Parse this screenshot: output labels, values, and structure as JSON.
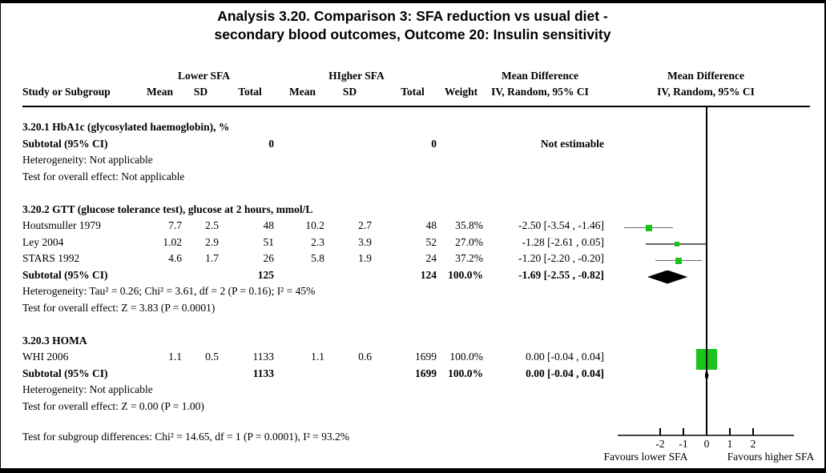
{
  "title": {
    "line1": "Analysis 3.20.   Comparison 3: SFA reduction vs usual diet -",
    "line2": "secondary blood outcomes, Outcome 20: Insulin sensitivity"
  },
  "header": {
    "study": "Study or Subgroup",
    "group1": "Lower SFA",
    "group2": "HIgher SFA",
    "mean1": "Mean",
    "sd1": "SD",
    "total1": "Total",
    "mean2": "Mean",
    "sd2": "SD",
    "total2": "Total",
    "weight": "Weight",
    "effect_title": "Mean Difference",
    "effect_sub": "IV, Random, 95% CI",
    "plot_title": "Mean Difference",
    "plot_sub": "IV, Random, 95% CI"
  },
  "colors": {
    "marker_green": "#1BC41B",
    "diamond_black": "#000000",
    "ci_line_gray": "#666666"
  },
  "chart_data": {
    "type": "forest",
    "effect_measure": "Mean Difference (IV, Random, 95% CI)",
    "axis": {
      "tick_values": [
        -2,
        -1,
        0,
        1,
        2
      ],
      "tick_labels": [
        "-2",
        "-1",
        "0",
        "1",
        "2"
      ],
      "xlim_drawn": [
        -3.85,
        3.75
      ],
      "favours_left": "Favours lower SFA",
      "favours_right": "Favours higher SFA"
    },
    "sections": [
      {
        "heading": "3.20.1 HbA1c (glycosylated haemoglobin), %",
        "studies": [],
        "subtotal": {
          "label": "Subtotal (95% CI)",
          "total1": "0",
          "total2": "0",
          "weight": "",
          "ci_text": "Not estimable",
          "estimable": false
        },
        "notes": [
          "Heterogeneity: Not applicable",
          "Test for overall effect: Not applicable"
        ]
      },
      {
        "heading": "3.20.2 GTT (glucose tolerance test), glucose at 2 hours, mmol/L",
        "studies": [
          {
            "name": "Houtsmuller 1979",
            "mean1": "7.7",
            "sd1": "2.5",
            "total1": "48",
            "mean2": "10.2",
            "sd2": "2.7",
            "total2": "48",
            "weight": "35.8%",
            "ci_text": "-2.50 [-3.54 , -1.46]",
            "est": -2.5,
            "lo": -3.54,
            "hi": -1.46,
            "weight_pct": 35.8
          },
          {
            "name": "Ley 2004",
            "mean1": "1.02",
            "sd1": "2.9",
            "total1": "51",
            "mean2": "2.3",
            "sd2": "3.9",
            "total2": "52",
            "weight": "27.0%",
            "ci_text": "-1.28 [-2.61 , 0.05]",
            "est": -1.28,
            "lo": -2.61,
            "hi": 0.05,
            "weight_pct": 27.0
          },
          {
            "name": "STARS 1992",
            "mean1": "4.6",
            "sd1": "1.7",
            "total1": "26",
            "mean2": "5.8",
            "sd2": "1.9",
            "total2": "24",
            "weight": "37.2%",
            "ci_text": "-1.20 [-2.20 , -0.20]",
            "est": -1.2,
            "lo": -2.2,
            "hi": -0.2,
            "weight_pct": 37.2
          }
        ],
        "subtotal": {
          "label": "Subtotal (95% CI)",
          "total1": "125",
          "total2": "124",
          "weight": "100.0%",
          "ci_text": "-1.69 [-2.55 , -0.82]",
          "estimable": true,
          "est": -1.69,
          "lo": -2.55,
          "hi": -0.82
        },
        "notes": [
          "Heterogeneity: Tau² = 0.26; Chi² = 3.61, df = 2 (P = 0.16); I² = 45%",
          "Test for overall effect: Z = 3.83 (P = 0.0001)"
        ]
      },
      {
        "heading": "3.20.3 HOMA",
        "studies": [
          {
            "name": "WHI 2006",
            "mean1": "1.1",
            "sd1": "0.5",
            "total1": "1133",
            "mean2": "1.1",
            "sd2": "0.6",
            "total2": "1699",
            "weight": "100.0%",
            "ci_text": "0.00 [-0.04 , 0.04]",
            "est": 0.0,
            "lo": -0.04,
            "hi": 0.04,
            "weight_pct": 100.0
          }
        ],
        "subtotal": {
          "label": "Subtotal (95% CI)",
          "total1": "1133",
          "total2": "1699",
          "weight": "100.0%",
          "ci_text": "0.00 [-0.04 , 0.04]",
          "estimable": true,
          "est": 0.0,
          "lo": -0.04,
          "hi": 0.04
        },
        "notes": [
          "Heterogeneity: Not applicable",
          "Test for overall effect: Z = 0.00 (P = 1.00)"
        ]
      }
    ]
  },
  "footer": {
    "subgroup_test": "Test for subgroup differences: Chi² = 14.65, df = 1 (P = 0.0001), I² = 93.2%"
  }
}
